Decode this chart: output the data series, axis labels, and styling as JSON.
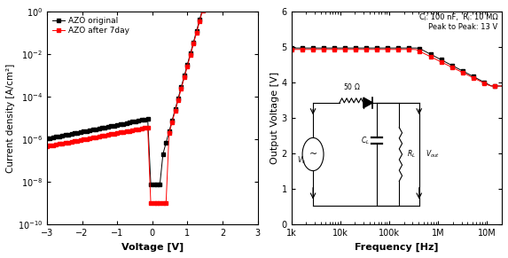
{
  "left_plot": {
    "xlabel": "Voltage [V]",
    "ylabel": "Current density [A/cm²]",
    "xlim": [
      -3,
      3
    ],
    "ylim": [
      1e-10,
      1.0
    ],
    "legend": [
      "AZO original",
      "AZO after 7day"
    ],
    "line_colors": [
      "black",
      "red"
    ],
    "markersize": 2.5
  },
  "right_plot": {
    "xlabel": "Frequency [Hz]",
    "ylabel": "Output Voltage [V]",
    "xlim": [
      1000,
      20000000
    ],
    "ylim": [
      0,
      6
    ],
    "yticks": [
      0,
      1,
      2,
      3,
      4,
      5,
      6
    ],
    "annotation": "Cⱼ: 100 nF,  Rⱼ: 10 MΩ\nPeak to Peak: 13 V",
    "line_colors": [
      "black",
      "red"
    ],
    "markersize": 2.5
  },
  "background_color": "white"
}
